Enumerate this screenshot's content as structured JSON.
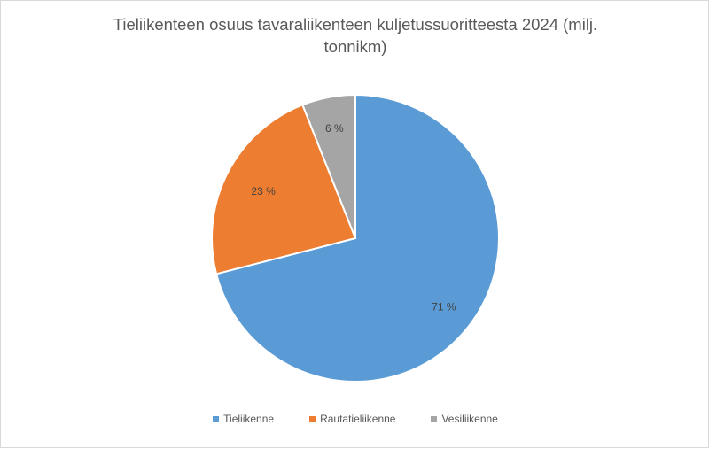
{
  "chart_data": {
    "type": "pie",
    "title": "Tieliikenteen osuus tavaraliikenteen kuljetussuoritteesta 2024 (milj. tonnikm)",
    "categories": [
      "Tieliikenne",
      "Rautatieliikenne",
      "Vesiliikenne"
    ],
    "values": [
      71,
      23,
      6
    ],
    "labels": [
      "71 %",
      "23 %",
      "6 %"
    ],
    "colors": [
      "#5b9bd5",
      "#ed7d31",
      "#a5a5a5"
    ],
    "legend_position": "bottom",
    "start_angle": "12 o'clock",
    "direction": "clockwise"
  }
}
